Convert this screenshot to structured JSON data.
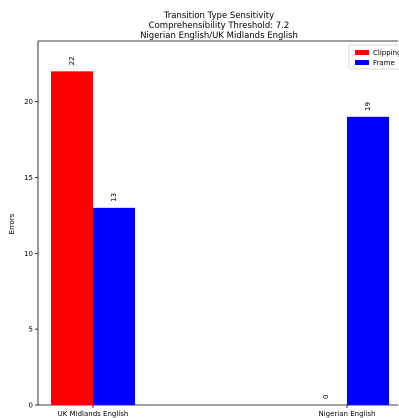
{
  "chart_data": {
    "type": "bar",
    "title_lines": [
      "Transition Type Sensitivity",
      "Comprehensibility Threshold: 7.2",
      "Nigerian English/UK Midlands English"
    ],
    "xlabel": "",
    "ylabel": "Errors",
    "ylim": [
      0,
      24
    ],
    "yticks": [
      0,
      5,
      10,
      15,
      20
    ],
    "categories": [
      "UK Midlands English",
      "Nigerian English"
    ],
    "series": [
      {
        "name": "Clipping",
        "color": "#ff0000",
        "values": [
          22,
          0
        ]
      },
      {
        "name": "Frame",
        "color": "#0000ff",
        "values": [
          13,
          19
        ]
      }
    ],
    "legend_position": "top-right",
    "grid": false
  }
}
